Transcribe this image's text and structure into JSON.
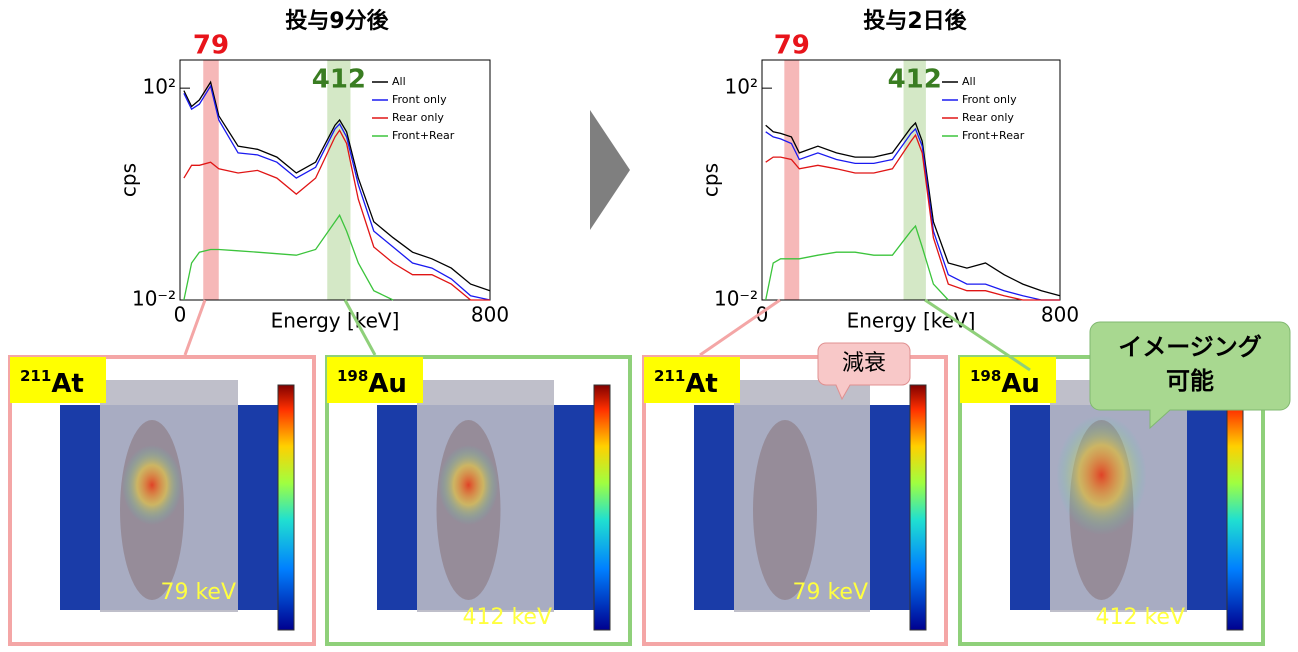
{
  "chart_data": [
    {
      "type": "line",
      "title": "投与9分後",
      "xlabel": "Energy [keV]",
      "ylabel": "cps",
      "log_y": true,
      "legend": "upper right",
      "xlim": [
        0,
        800
      ],
      "xticks": [
        0,
        800
      ],
      "ylim": [
        0.01,
        340
      ],
      "yticks": [
        {
          "value": 0.01,
          "label": "10⁻²"
        },
        {
          "value": 100,
          "label": "10²"
        }
      ],
      "bands": [
        {
          "range": [
            60,
            100
          ],
          "label": "79",
          "color": "#f4a6a6",
          "label_color": "#e8141b"
        },
        {
          "range": [
            380,
            440
          ],
          "label": "412",
          "color": "#c9e2b8",
          "label_color": "#3a7d22"
        }
      ],
      "x": [
        10,
        30,
        50,
        79,
        100,
        150,
        200,
        250,
        300,
        350,
        400,
        412,
        430,
        460,
        500,
        550,
        600,
        650,
        700,
        750,
        800
      ],
      "series": [
        {
          "name": "All",
          "color": "#000000",
          "values": [
            90,
            45,
            60,
            130,
            30,
            8,
            7,
            5,
            2.5,
            4,
            20,
            25,
            15,
            2,
            0.3,
            0.15,
            0.08,
            0.06,
            0.04,
            0.02,
            0.015
          ]
        },
        {
          "name": "Front only",
          "color": "#1a1af0",
          "values": [
            80,
            40,
            50,
            110,
            25,
            6,
            5.5,
            4,
            2,
            3.2,
            17,
            21,
            12,
            1.5,
            0.2,
            0.1,
            0.05,
            0.04,
            0.025,
            0.012,
            0.01
          ]
        },
        {
          "name": "Rear only",
          "color": "#e01515",
          "values": [
            2,
            3.5,
            3.5,
            4,
            3,
            2.5,
            2.8,
            2,
            1,
            2,
            12,
            16,
            9,
            0.8,
            0.1,
            0.05,
            0.03,
            0.03,
            0.02,
            0.01,
            0.01
          ]
        },
        {
          "name": "Front+Rear",
          "color": "#3cc43c",
          "values": [
            0.01,
            0.05,
            0.08,
            0.09,
            0.09,
            0.085,
            0.08,
            0.075,
            0.07,
            0.09,
            0.3,
            0.4,
            0.2,
            0.05,
            0.015,
            0.01,
            null,
            null,
            null,
            null,
            null
          ]
        }
      ]
    },
    {
      "type": "line",
      "title": "投与2日後",
      "xlabel": "Energy [keV]",
      "ylabel": "cps",
      "log_y": true,
      "legend": "upper right",
      "xlim": [
        0,
        800
      ],
      "xticks": [
        0,
        800
      ],
      "ylim": [
        0.01,
        340
      ],
      "yticks": [
        {
          "value": 0.01,
          "label": "10⁻²"
        },
        {
          "value": 100,
          "label": "10²"
        }
      ],
      "bands": [
        {
          "range": [
            60,
            100
          ],
          "label": "79",
          "color": "#f4a6a6",
          "label_color": "#e8141b"
        },
        {
          "range": [
            380,
            440
          ],
          "label": "412",
          "color": "#c9e2b8",
          "label_color": "#3a7d22"
        }
      ],
      "x": [
        10,
        30,
        50,
        79,
        100,
        150,
        200,
        250,
        300,
        350,
        400,
        412,
        430,
        460,
        500,
        550,
        600,
        650,
        700,
        750,
        800
      ],
      "series": [
        {
          "name": "All",
          "color": "#000000",
          "values": [
            20,
            15,
            14,
            12,
            6,
            8,
            6,
            5,
            5,
            6,
            18,
            22,
            10,
            0.3,
            0.05,
            0.04,
            0.05,
            0.03,
            0.02,
            0.015,
            0.012
          ]
        },
        {
          "name": "Front only",
          "color": "#1a1af0",
          "values": [
            15,
            12,
            11,
            9,
            4.5,
            6,
            4.5,
            3.8,
            3.8,
            4.5,
            14,
            17,
            8,
            0.2,
            0.03,
            0.02,
            0.02,
            0.015,
            0.012,
            0.01,
            0.01
          ]
        },
        {
          "name": "Rear only",
          "color": "#e01515",
          "values": [
            4,
            5,
            5,
            4.5,
            3,
            3.5,
            3,
            2.5,
            2.5,
            3,
            10,
            13,
            6,
            0.15,
            0.02,
            0.015,
            0.015,
            0.012,
            0.01,
            0.01,
            0.01
          ]
        },
        {
          "name": "Front+Rear",
          "color": "#3cc43c",
          "values": [
            0.01,
            0.05,
            0.06,
            0.06,
            0.06,
            0.07,
            0.08,
            0.08,
            0.07,
            0.07,
            0.2,
            0.25,
            0.1,
            0.02,
            0.01,
            null,
            null,
            null,
            null,
            null,
            null
          ]
        }
      ]
    }
  ],
  "panels": [
    {
      "mass": "211",
      "element": "At",
      "energy": "79 keV"
    },
    {
      "mass": "198",
      "element": "Au",
      "energy": "412 keV"
    },
    {
      "mass": "211",
      "element": "At",
      "energy": "79 keV"
    },
    {
      "mass": "198",
      "element": "Au",
      "energy": "412 keV"
    }
  ],
  "callouts": {
    "decay": "減衰",
    "imaging": [
      "イメージング",
      "可能"
    ]
  }
}
